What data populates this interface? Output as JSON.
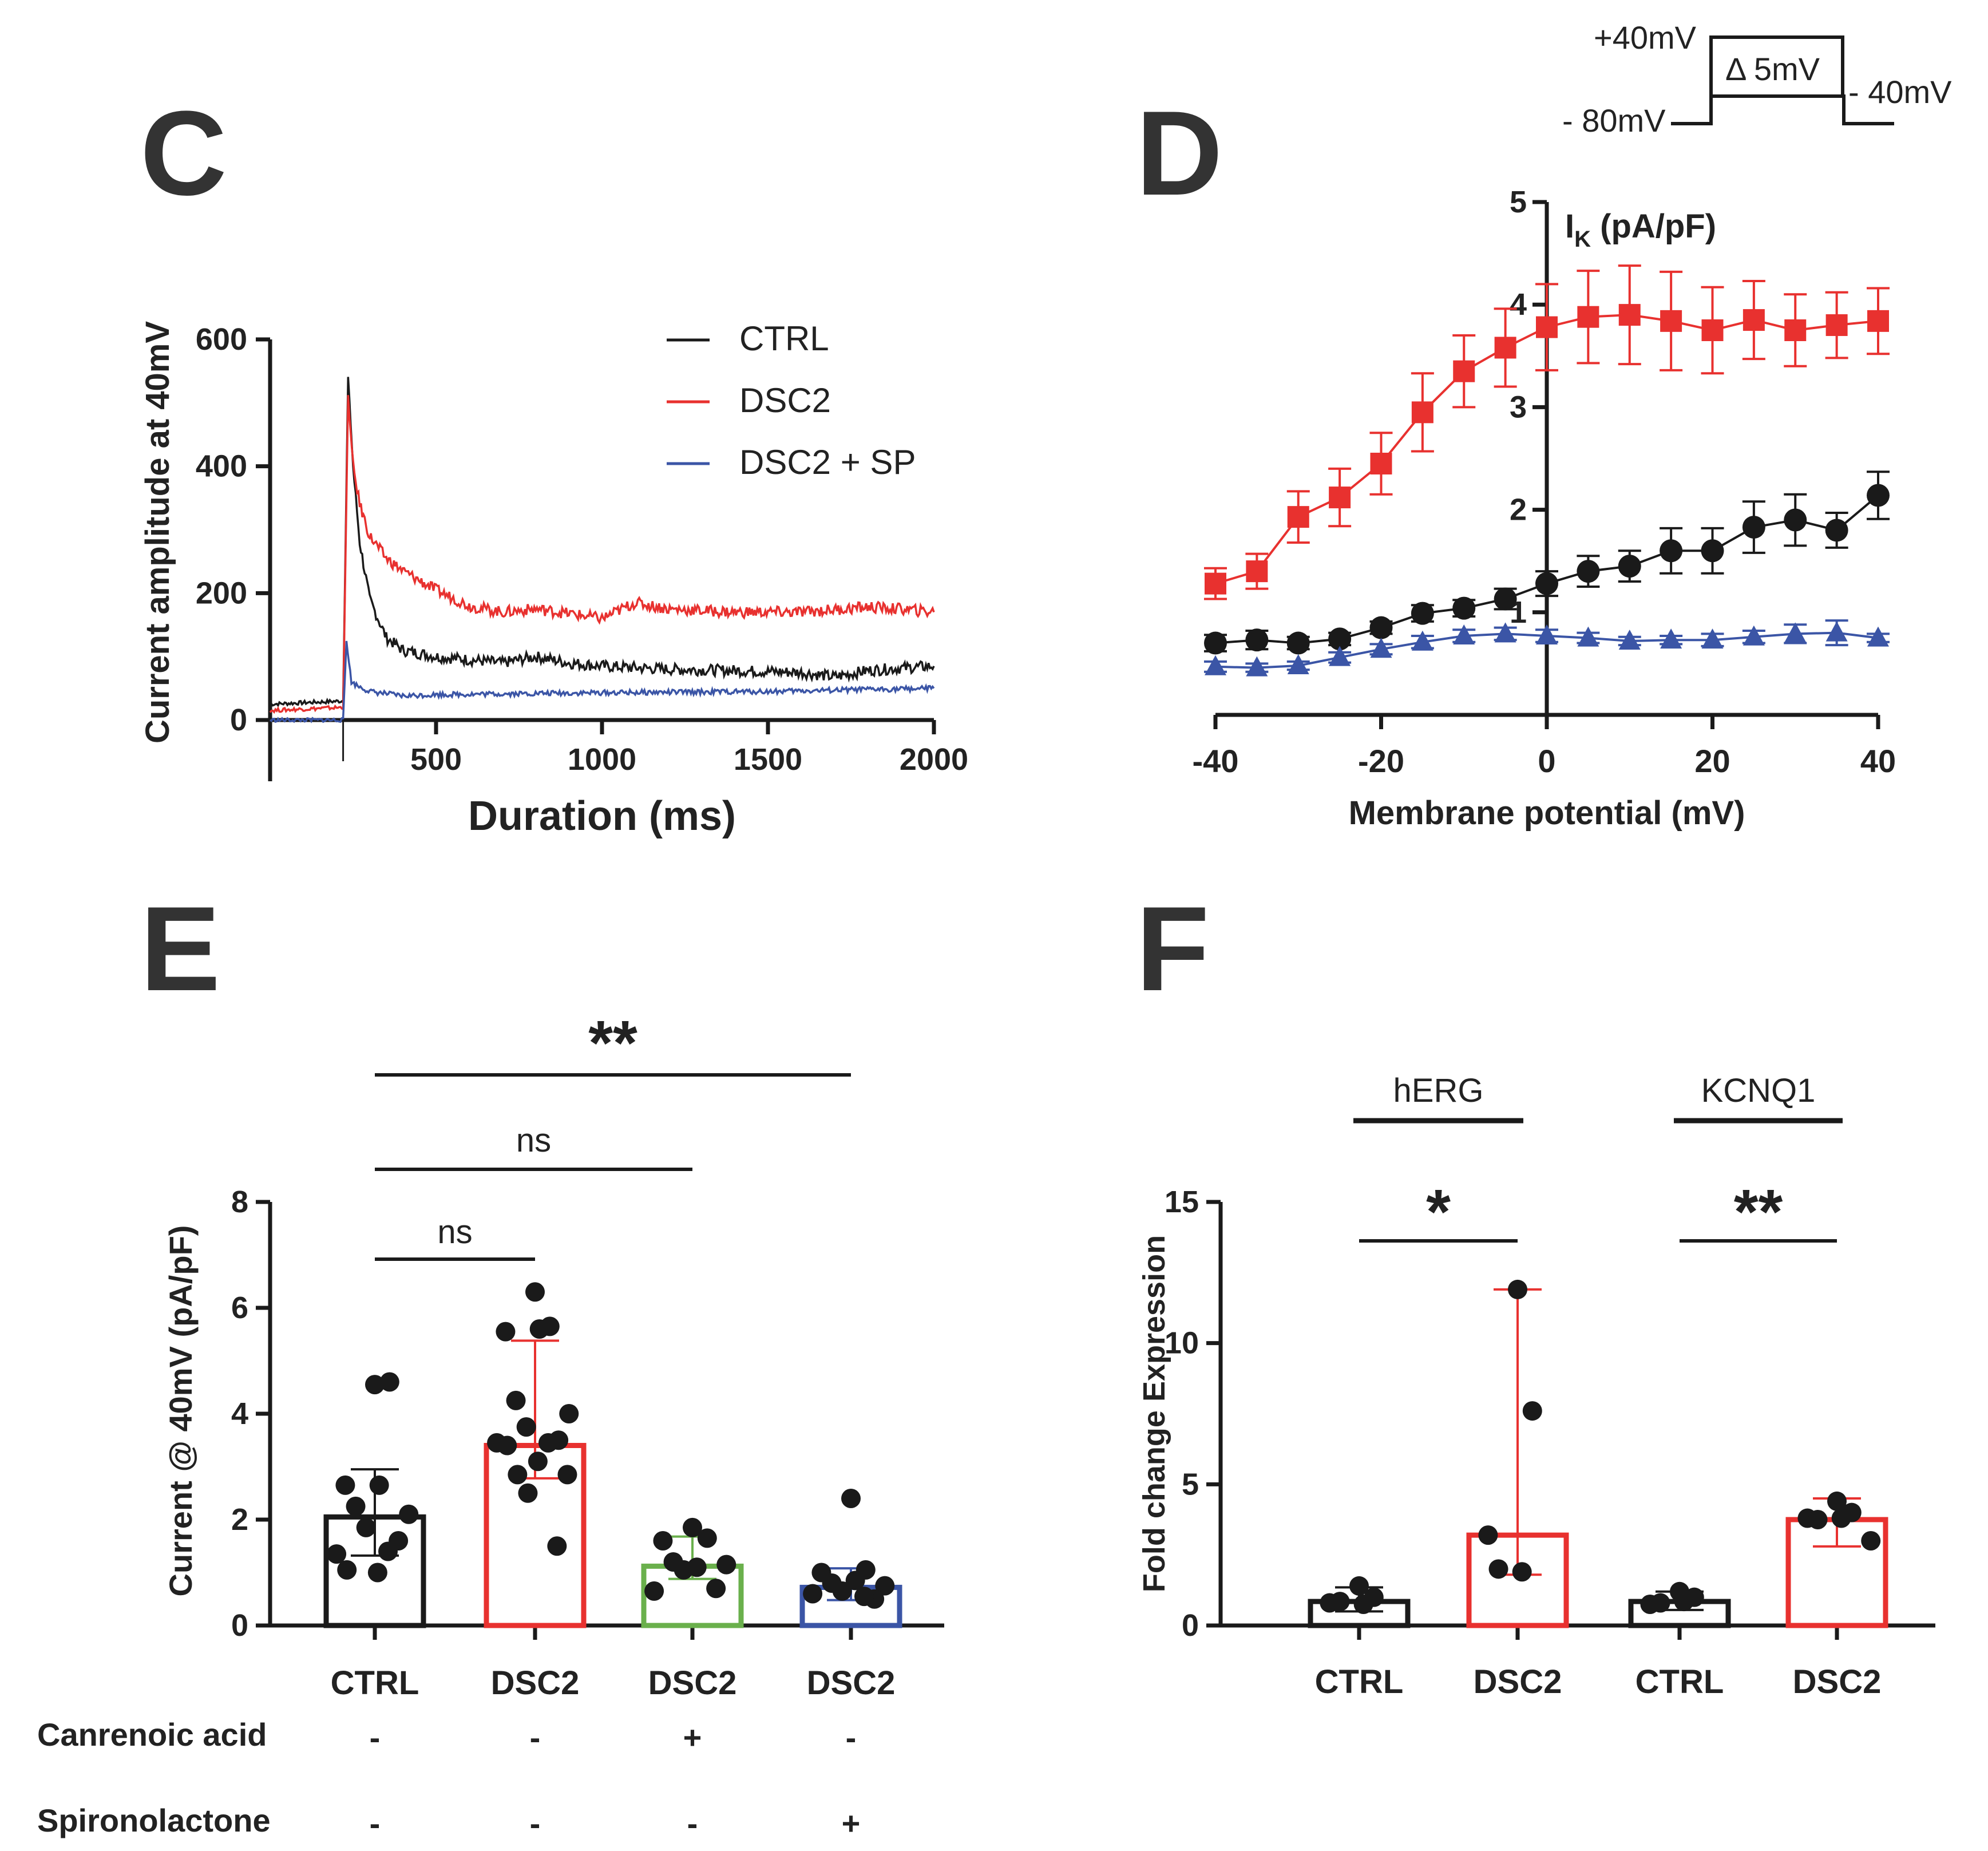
{
  "colors": {
    "ctrl": "#1a1a1a",
    "dsc2": "#e8312f",
    "sp": "#3b55a6",
    "canrenoic": "#6ab04c",
    "axis": "#1a1a1a"
  },
  "panels": {
    "C": {
      "letter": "C"
    },
    "D": {
      "letter": "D"
    },
    "E": {
      "letter": "E"
    },
    "F": {
      "letter": "F"
    }
  },
  "protocol": {
    "top_label": "+40mV",
    "left_label": "- 80mV",
    "right_label": "- 40mV",
    "step_label": "Δ 5mV"
  },
  "chart_data": [
    {
      "id": "C",
      "type": "line",
      "xlabel": "Duration (ms)",
      "ylabel": "Current amplitude at 40mV",
      "xlim": [
        0,
        2000
      ],
      "ylim": [
        -100,
        600
      ],
      "xticks": [
        500,
        1000,
        1500,
        2000
      ],
      "yticks": [
        0,
        200,
        400,
        600
      ],
      "legend": [
        "CTRL",
        "DSC2",
        "DSC2 + SP"
      ],
      "series": [
        {
          "name": "CTRL",
          "x": [
            0,
            220,
            235,
            250,
            270,
            300,
            350,
            400,
            500,
            600,
            700,
            800,
            900,
            1000,
            1200,
            1400,
            1600,
            1700,
            1800,
            1900,
            2000
          ],
          "y": [
            25,
            30,
            540,
            400,
            280,
            190,
            130,
            110,
            100,
            95,
            90,
            100,
            90,
            85,
            80,
            78,
            75,
            68,
            78,
            82,
            85
          ]
        },
        {
          "name": "DSC2",
          "x": [
            0,
            220,
            235,
            250,
            270,
            300,
            350,
            400,
            500,
            600,
            700,
            800,
            900,
            1000,
            1100,
            1200,
            1400,
            1600,
            1800,
            1900,
            2000
          ],
          "y": [
            15,
            20,
            510,
            400,
            340,
            290,
            255,
            235,
            205,
            180,
            170,
            175,
            168,
            160,
            185,
            175,
            170,
            170,
            178,
            175,
            170
          ]
        },
        {
          "name": "DSC2 + SP",
          "x": [
            0,
            220,
            230,
            245,
            260,
            300,
            400,
            500,
            800,
            1000,
            1500,
            2000
          ],
          "y": [
            0,
            0,
            125,
            60,
            55,
            45,
            38,
            40,
            42,
            43,
            45,
            50
          ]
        }
      ]
    },
    {
      "id": "D",
      "type": "line",
      "xlabel": "Membrane potential (mV)",
      "ylabel": "I",
      "ylabel_sub": "K",
      "ylabel_unit": "(pA/pF)",
      "xlim": [
        -40,
        40
      ],
      "ylim": [
        0,
        5
      ],
      "xticks": [
        -40,
        -20,
        0,
        20,
        40
      ],
      "yticks": [
        1,
        2,
        3,
        4,
        5
      ],
      "x": [
        -40,
        -35,
        -30,
        -25,
        -20,
        -15,
        -10,
        -5,
        0,
        5,
        10,
        15,
        20,
        25,
        30,
        35,
        40
      ],
      "series": [
        {
          "name": "DSC2",
          "marker": "square",
          "y": [
            1.28,
            1.4,
            1.93,
            2.12,
            2.45,
            2.95,
            3.35,
            3.58,
            3.78,
            3.88,
            3.9,
            3.84,
            3.75,
            3.85,
            3.75,
            3.8,
            3.84
          ],
          "err": [
            0.15,
            0.17,
            0.25,
            0.28,
            0.3,
            0.38,
            0.35,
            0.38,
            0.42,
            0.45,
            0.48,
            0.48,
            0.42,
            0.38,
            0.35,
            0.32,
            0.32
          ]
        },
        {
          "name": "CTRL",
          "marker": "circle",
          "y": [
            0.7,
            0.73,
            0.7,
            0.74,
            0.85,
            0.99,
            1.04,
            1.13,
            1.28,
            1.4,
            1.45,
            1.6,
            1.6,
            1.83,
            1.9,
            1.8,
            2.14
          ],
          "err": [
            0.08,
            0.09,
            0.06,
            0.06,
            0.06,
            0.08,
            0.08,
            0.1,
            0.12,
            0.15,
            0.15,
            0.22,
            0.22,
            0.25,
            0.25,
            0.17,
            0.23
          ]
        },
        {
          "name": "DSC2 + SP",
          "marker": "triangle",
          "y": [
            0.47,
            0.46,
            0.48,
            0.56,
            0.64,
            0.71,
            0.77,
            0.79,
            0.77,
            0.75,
            0.72,
            0.73,
            0.73,
            0.76,
            0.79,
            0.8,
            0.75
          ],
          "err": [
            0.05,
            0.04,
            0.04,
            0.05,
            0.05,
            0.06,
            0.06,
            0.06,
            0.06,
            0.05,
            0.04,
            0.04,
            0.06,
            0.06,
            0.09,
            0.12,
            0.04
          ]
        }
      ]
    },
    {
      "id": "E",
      "type": "bar",
      "ylabel": "Current @ 40mV (pA/pF)",
      "ylim": [
        0,
        8
      ],
      "yticks": [
        0,
        2,
        4,
        6,
        8
      ],
      "categories": [
        "CTRL",
        "DSC2",
        "DSC2",
        "DSC2"
      ],
      "values": [
        2.05,
        3.4,
        1.12,
        0.72
      ],
      "err_low": [
        1.32,
        2.78,
        0.88,
        0.48
      ],
      "err_high": [
        2.95,
        5.38,
        1.68,
        1.08
      ],
      "points": [
        [
          4.55,
          4.6,
          2.65,
          2.65,
          2.25,
          2.1,
          1.85,
          1.6,
          1.35,
          1.4,
          1.05,
          1.0
        ],
        [
          6.3,
          5.65,
          5.55,
          5.6,
          4.25,
          4.0,
          3.75,
          3.5,
          3.45,
          3.45,
          3.4,
          3.1,
          2.85,
          2.85,
          2.5,
          1.5
        ],
        [
          1.85,
          1.65,
          1.6,
          1.1,
          1.2,
          1.15,
          1.05,
          0.7,
          0.65
        ],
        [
          2.4,
          1.05,
          1.0,
          0.85,
          0.8,
          0.75,
          0.65,
          0.5,
          0.6,
          0.55
        ]
      ],
      "bar_colors": [
        "#1a1a1a",
        "#e8312f",
        "#6ab04c",
        "#3b55a6"
      ],
      "row_labels": [
        "Canrenoic acid",
        "Spironolactone"
      ],
      "row_values": [
        [
          "-",
          "-",
          "+",
          "-"
        ],
        [
          "-",
          "-",
          "-",
          "+"
        ]
      ],
      "comparisons": [
        {
          "from": 0,
          "to": 1,
          "label": "ns"
        },
        {
          "from": 0,
          "to": 2,
          "label": "ns"
        },
        {
          "from": 0,
          "to": 3,
          "label": "**"
        }
      ]
    },
    {
      "id": "F",
      "type": "bar",
      "ylabel": "Fold change Expression",
      "ylim": [
        0,
        15
      ],
      "yticks": [
        0,
        5,
        10,
        15
      ],
      "categories": [
        "CTRL",
        "DSC2",
        "CTRL",
        "DSC2"
      ],
      "values": [
        0.85,
        3.2,
        0.85,
        3.75
      ],
      "err_low": [
        0.5,
        1.8,
        0.55,
        2.8
      ],
      "err_high": [
        1.35,
        11.9,
        1.2,
        4.5
      ],
      "points": [
        [
          1.4,
          1.0,
          0.8,
          0.75,
          0.85
        ],
        [
          11.9,
          7.6,
          3.2,
          1.9,
          2.0
        ],
        [
          1.2,
          1.0,
          0.75,
          0.85,
          0.8
        ],
        [
          4.4,
          4.0,
          3.8,
          3.8,
          3.75,
          3.0
        ]
      ],
      "bar_colors": [
        "#1a1a1a",
        "#e8312f",
        "#1a1a1a",
        "#e8312f"
      ],
      "groups": [
        {
          "label": "hERG",
          "from": 0,
          "to": 1,
          "sig": "*"
        },
        {
          "label": "KCNQ1",
          "from": 2,
          "to": 3,
          "sig": "**"
        }
      ]
    }
  ]
}
